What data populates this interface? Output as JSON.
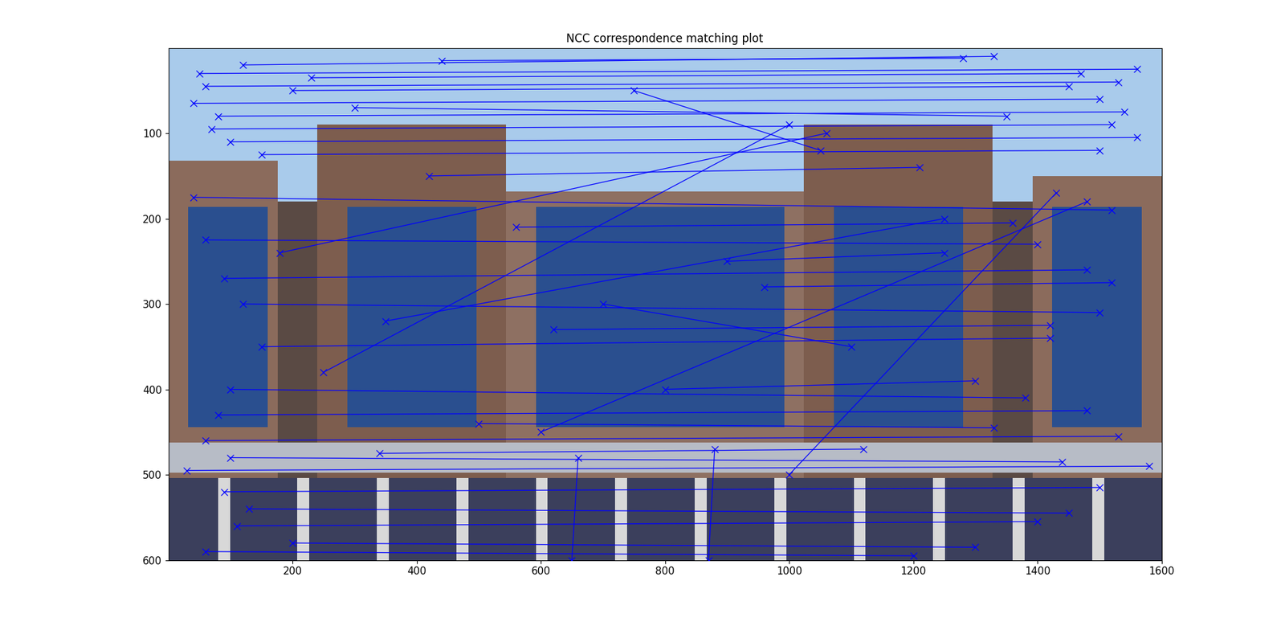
{
  "chart_data": {
    "type": "line",
    "title": "NCC correspondence matching plot",
    "color": "#0000ff",
    "marker": "x",
    "line_style": "solid",
    "grid": false,
    "xlim": [
      0,
      1600
    ],
    "ylim": [
      600,
      0
    ],
    "xticks": [
      200,
      400,
      600,
      800,
      1000,
      1200,
      1400,
      1600
    ],
    "yticks": [
      100,
      200,
      300,
      400,
      500,
      600
    ],
    "lines": [
      {
        "x": [
          50,
          1560
        ],
        "y": [
          30,
          25
        ]
      },
      {
        "x": [
          60,
          1530
        ],
        "y": [
          45,
          40
        ]
      },
      {
        "x": [
          40,
          1500
        ],
        "y": [
          65,
          60
        ]
      },
      {
        "x": [
          80,
          1540
        ],
        "y": [
          80,
          75
        ]
      },
      {
        "x": [
          70,
          1520
        ],
        "y": [
          95,
          90
        ]
      },
      {
        "x": [
          100,
          1560
        ],
        "y": [
          110,
          105
        ]
      },
      {
        "x": [
          150,
          1500
        ],
        "y": [
          125,
          120
        ]
      },
      {
        "x": [
          120,
          1330
        ],
        "y": [
          20,
          10
        ]
      },
      {
        "x": [
          200,
          1450
        ],
        "y": [
          50,
          45
        ]
      },
      {
        "x": [
          300,
          1350
        ],
        "y": [
          70,
          80
        ]
      },
      {
        "x": [
          440,
          1280
        ],
        "y": [
          15,
          12
        ]
      },
      {
        "x": [
          230,
          1470
        ],
        "y": [
          35,
          30
        ]
      },
      {
        "x": [
          250,
          1000
        ],
        "y": [
          380,
          90
        ]
      },
      {
        "x": [
          350,
          1250
        ],
        "y": [
          320,
          200
        ]
      },
      {
        "x": [
          600,
          1480
        ],
        "y": [
          450,
          180
        ]
      },
      {
        "x": [
          750,
          1050
        ],
        "y": [
          50,
          120
        ]
      },
      {
        "x": [
          40,
          1520
        ],
        "y": [
          175,
          190
        ]
      },
      {
        "x": [
          60,
          1400
        ],
        "y": [
          225,
          230
        ]
      },
      {
        "x": [
          90,
          1480
        ],
        "y": [
          270,
          260
        ]
      },
      {
        "x": [
          120,
          1500
        ],
        "y": [
          300,
          310
        ]
      },
      {
        "x": [
          150,
          1420
        ],
        "y": [
          350,
          340
        ]
      },
      {
        "x": [
          100,
          1380
        ],
        "y": [
          400,
          410
        ]
      },
      {
        "x": [
          80,
          1480
        ],
        "y": [
          430,
          425
        ]
      },
      {
        "x": [
          60,
          1530
        ],
        "y": [
          460,
          455
        ]
      },
      {
        "x": [
          100,
          1440
        ],
        "y": [
          480,
          485
        ]
      },
      {
        "x": [
          30,
          1580
        ],
        "y": [
          495,
          490
        ]
      },
      {
        "x": [
          90,
          1500
        ],
        "y": [
          520,
          515
        ]
      },
      {
        "x": [
          130,
          1450
        ],
        "y": [
          540,
          545
        ]
      },
      {
        "x": [
          110,
          1400
        ],
        "y": [
          560,
          555
        ]
      },
      {
        "x": [
          200,
          1300
        ],
        "y": [
          580,
          585
        ]
      },
      {
        "x": [
          60,
          1200
        ],
        "y": [
          590,
          595
        ]
      },
      {
        "x": [
          650,
          660
        ],
        "y": [
          600,
          480
        ]
      },
      {
        "x": [
          870,
          880
        ],
        "y": [
          600,
          470
        ]
      },
      {
        "x": [
          700,
          1100
        ],
        "y": [
          300,
          350
        ]
      },
      {
        "x": [
          800,
          1300
        ],
        "y": [
          400,
          390
        ]
      },
      {
        "x": [
          900,
          1250
        ],
        "y": [
          250,
          240
        ]
      },
      {
        "x": [
          340,
          1120
        ],
        "y": [
          475,
          470
        ]
      },
      {
        "x": [
          560,
          1360
        ],
        "y": [
          210,
          205
        ]
      },
      {
        "x": [
          420,
          1210
        ],
        "y": [
          150,
          140
        ]
      },
      {
        "x": [
          620,
          1420
        ],
        "y": [
          330,
          325
        ]
      },
      {
        "x": [
          500,
          1330
        ],
        "y": [
          440,
          445
        ]
      },
      {
        "x": [
          180,
          1060
        ],
        "y": [
          240,
          100
        ]
      },
      {
        "x": [
          960,
          1520
        ],
        "y": [
          280,
          275
        ]
      },
      {
        "x": [
          1000,
          1430
        ],
        "y": [
          500,
          170
        ]
      }
    ]
  }
}
